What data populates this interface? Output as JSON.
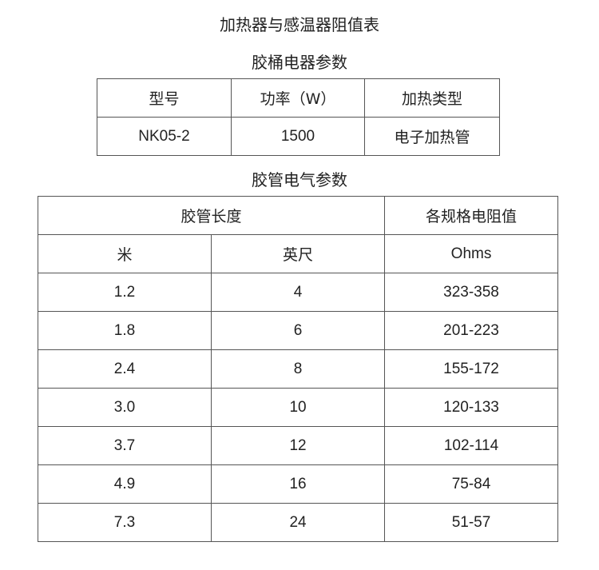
{
  "title": "加热器与感温器阻值表",
  "section1": {
    "title": "胶桶电器参数",
    "headers": [
      "型号",
      "功率（W）",
      "加热类型"
    ],
    "row": [
      "NK05-2",
      "1500",
      "电子加热管"
    ]
  },
  "section2": {
    "title": "胶管电气参数",
    "group_header": "胶管长度",
    "resistance_header": "各规格电阻值",
    "sub_headers": [
      "米",
      "英尺",
      "Ohms"
    ],
    "rows": [
      [
        "1.2",
        "4",
        "323-358"
      ],
      [
        "1.8",
        "6",
        "201-223"
      ],
      [
        "2.4",
        "8",
        "155-172"
      ],
      [
        "3.0",
        "10",
        "120-133"
      ],
      [
        "3.7",
        "12",
        "102-114"
      ],
      [
        "4.9",
        "16",
        "75-84"
      ],
      [
        "7.3",
        "24",
        "51-57"
      ]
    ]
  }
}
